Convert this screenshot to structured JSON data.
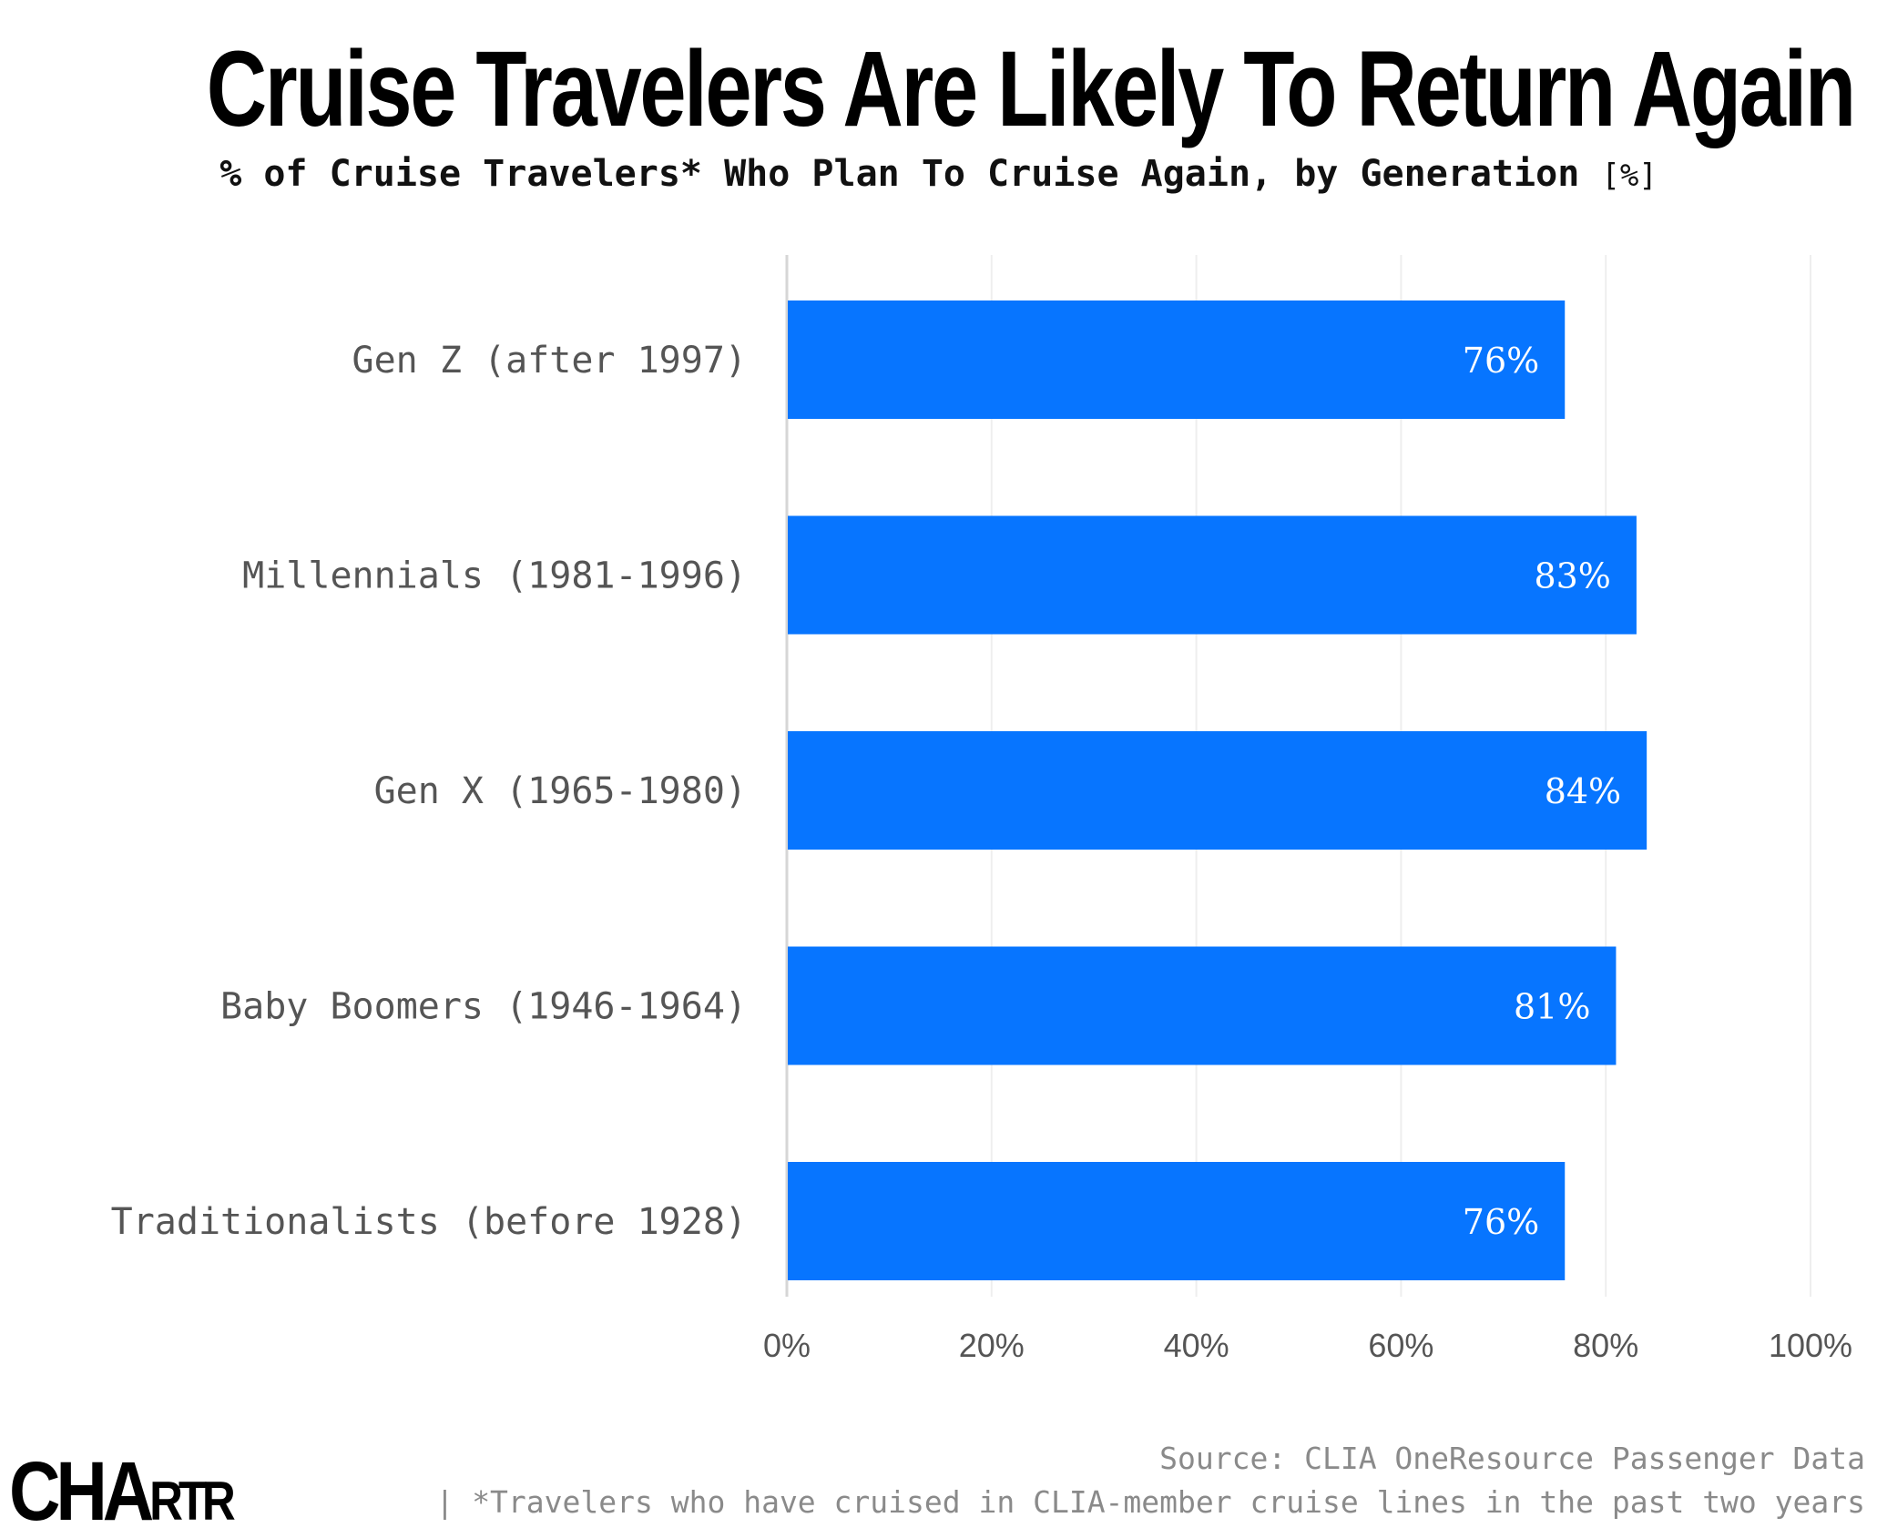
{
  "title": "Cruise Travelers Are Likely To Return Again",
  "subtitle": "% of Cruise Travelers* Who Plan To Cruise Again, by Generation",
  "subtitle_unit": "[%]",
  "source": "Source: CLIA OneResource Passenger Data",
  "footnote": "| *Travelers who have cruised in CLIA-member cruise lines in the past two years",
  "logo": "CHARTR",
  "colors": {
    "bar": "#0775FF",
    "label": "#555555",
    "grid": "#eeeeee"
  },
  "chart_data": {
    "type": "bar",
    "orientation": "horizontal",
    "categories": [
      "Gen Z (after 1997)",
      "Millennials (1981-1996)",
      "Gen X (1965-1980)",
      "Baby Boomers (1946-1964)",
      "Traditionalists (before 1928)"
    ],
    "values": [
      76,
      83,
      84,
      81,
      76
    ],
    "data_labels": [
      "76%",
      "83%",
      "84%",
      "81%",
      "76%"
    ],
    "xlim": [
      0,
      100
    ],
    "xticks": [
      "0%",
      "20%",
      "40%",
      "60%",
      "80%",
      "100%"
    ],
    "xtick_values": [
      0,
      20,
      40,
      60,
      80,
      100
    ],
    "grid": true
  }
}
